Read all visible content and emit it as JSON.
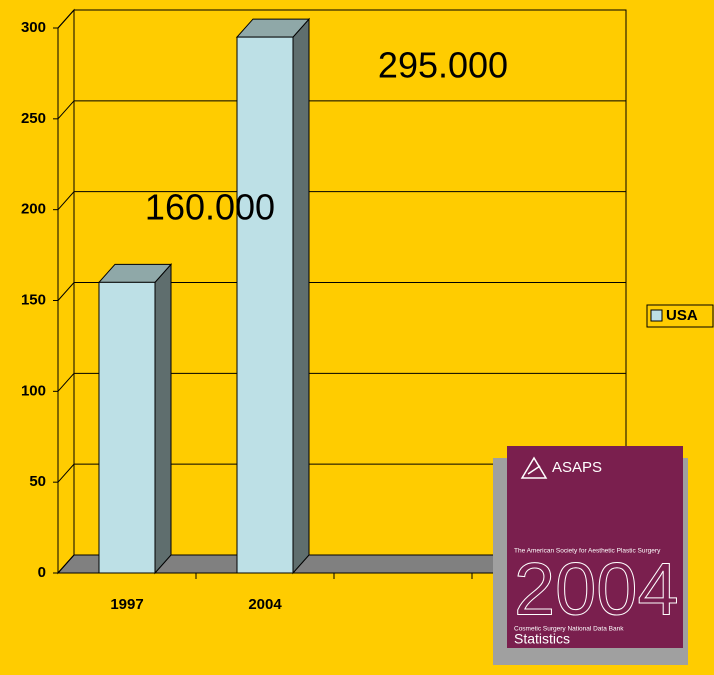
{
  "chart_data": {
    "type": "bar",
    "categories": [
      "1997",
      "2004",
      null,
      null
    ],
    "series": [
      {
        "name": "USA",
        "color": "#bde0e6",
        "values": [
          160,
          295,
          null,
          null
        ],
        "value_labels": [
          "160.000",
          "295.000",
          null,
          null
        ]
      }
    ],
    "ylim": [
      0,
      300
    ],
    "yticks": [
      0,
      50,
      100,
      150,
      200,
      250,
      300
    ],
    "grid": true,
    "legend": "right"
  },
  "cover": {
    "brand": "ASAPS",
    "society": "The American Society for Aesthetic Plastic Surgery",
    "year": "2004",
    "subtitle": "Cosmetic Surgery National Data Bank",
    "label": "Statistics"
  }
}
